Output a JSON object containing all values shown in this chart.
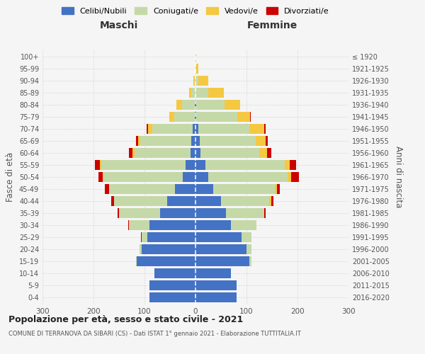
{
  "age_groups": [
    "0-4",
    "5-9",
    "10-14",
    "15-19",
    "20-24",
    "25-29",
    "30-34",
    "35-39",
    "40-44",
    "45-49",
    "50-54",
    "55-59",
    "60-64",
    "65-69",
    "70-74",
    "75-79",
    "80-84",
    "85-89",
    "90-94",
    "95-99",
    "100+"
  ],
  "birth_years": [
    "2016-2020",
    "2011-2015",
    "2006-2010",
    "2001-2005",
    "1996-2000",
    "1991-1995",
    "1986-1990",
    "1981-1985",
    "1976-1980",
    "1971-1975",
    "1966-1970",
    "1961-1965",
    "1956-1960",
    "1951-1955",
    "1946-1950",
    "1941-1945",
    "1936-1940",
    "1931-1935",
    "1926-1930",
    "1921-1925",
    "≤ 1920"
  ],
  "male": {
    "celibi": [
      90,
      90,
      80,
      115,
      105,
      95,
      90,
      70,
      55,
      40,
      25,
      20,
      10,
      8,
      5,
      2,
      2,
      0,
      0,
      0,
      0
    ],
    "coniugati": [
      0,
      0,
      0,
      2,
      5,
      10,
      40,
      80,
      105,
      130,
      155,
      165,
      110,
      100,
      80,
      40,
      25,
      8,
      2,
      0,
      0
    ],
    "vedovi": [
      0,
      0,
      0,
      0,
      0,
      0,
      0,
      0,
      0,
      0,
      2,
      2,
      3,
      5,
      8,
      10,
      10,
      5,
      2,
      0,
      0
    ],
    "divorziati": [
      0,
      0,
      0,
      0,
      0,
      2,
      2,
      3,
      5,
      8,
      8,
      10,
      8,
      3,
      3,
      0,
      0,
      0,
      0,
      0,
      0
    ]
  },
  "female": {
    "nubili": [
      80,
      80,
      70,
      105,
      100,
      90,
      70,
      60,
      50,
      35,
      25,
      20,
      10,
      8,
      5,
      2,
      2,
      0,
      0,
      0,
      0
    ],
    "coniugate": [
      0,
      0,
      0,
      5,
      10,
      20,
      50,
      75,
      95,
      120,
      155,
      155,
      115,
      110,
      100,
      80,
      55,
      25,
      5,
      0,
      0
    ],
    "vedove": [
      0,
      0,
      0,
      0,
      0,
      0,
      0,
      0,
      3,
      5,
      8,
      10,
      15,
      20,
      30,
      25,
      30,
      30,
      20,
      5,
      1
    ],
    "divorziate": [
      0,
      0,
      0,
      0,
      0,
      0,
      0,
      2,
      5,
      5,
      15,
      12,
      8,
      3,
      3,
      2,
      0,
      0,
      0,
      0,
      0
    ]
  },
  "colors": {
    "celibi": "#4472c4",
    "coniugati": "#c5d9a8",
    "vedovi": "#f5c842",
    "divorziati": "#cc0000"
  },
  "title": "Popolazione per età, sesso e stato civile - 2021",
  "subtitle": "COMUNE DI TERRANOVA DA SIBARI (CS) - Dati ISTAT 1° gennaio 2021 - Elaborazione TUTTITALIA.IT",
  "ylabel_left": "Fasce di età",
  "ylabel_right": "Anni di nascita",
  "xlabel_left": "Maschi",
  "xlabel_right": "Femmine",
  "legend_labels": [
    "Celibi/Nubili",
    "Coniugati/e",
    "Vedovi/e",
    "Divorziati/e"
  ],
  "xlim": 300,
  "bg_color": "#f5f5f5",
  "grid_color": "#cccccc"
}
